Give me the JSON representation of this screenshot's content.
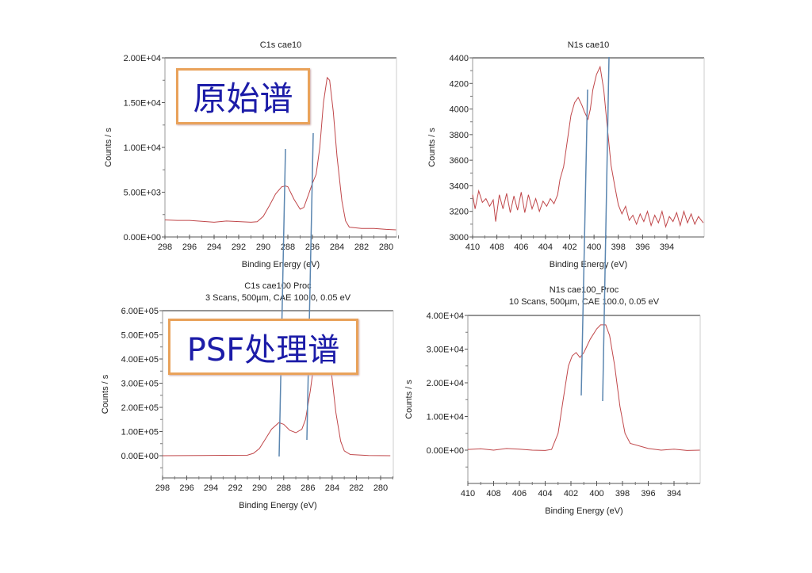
{
  "overlays": {
    "raw_label": "原始谱",
    "psf_label": "PSF处理谱"
  },
  "colors": {
    "curve": "#c0474a",
    "reference_lines": "#5b86b0",
    "overlay_border": "#e9a25a",
    "overlay_text": "#1c1ca8"
  },
  "chart_data": [
    {
      "type": "line",
      "title": "C1s cae10",
      "subtitle": "",
      "xlabel": "Binding Energy (eV)",
      "ylabel": "Counts / s",
      "xlim": [
        298,
        279.2
      ],
      "ylim": [
        0,
        20000
      ],
      "xticks": [
        "298",
        "296",
        "294",
        "292",
        "290",
        "288",
        "286",
        "284",
        "282",
        "280"
      ],
      "yticks": [
        "0.00E+00",
        "5.00E+03",
        "1.00E+04",
        "1.50E+04",
        "2.00E+04"
      ],
      "points": [
        [
          298,
          1900
        ],
        [
          297,
          1850
        ],
        [
          296,
          1850
        ],
        [
          295,
          1750
        ],
        [
          294,
          1650
        ],
        [
          293,
          1780
        ],
        [
          292,
          1720
        ],
        [
          291,
          1650
        ],
        [
          290.5,
          1700
        ],
        [
          290,
          2300
        ],
        [
          289.5,
          3500
        ],
        [
          289,
          4800
        ],
        [
          288.5,
          5600
        ],
        [
          288.2,
          5700
        ],
        [
          288,
          5600
        ],
        [
          287.5,
          4200
        ],
        [
          287,
          3100
        ],
        [
          286.7,
          3300
        ],
        [
          286.3,
          4800
        ],
        [
          286,
          6000
        ],
        [
          285.7,
          7000
        ],
        [
          285.4,
          10000
        ],
        [
          285.1,
          15000
        ],
        [
          284.8,
          17800
        ],
        [
          284.6,
          17500
        ],
        [
          284.3,
          14000
        ],
        [
          284,
          9000
        ],
        [
          283.6,
          4000
        ],
        [
          283.3,
          1800
        ],
        [
          283,
          1100
        ],
        [
          282,
          950
        ],
        [
          281,
          950
        ],
        [
          280,
          850
        ],
        [
          279.2,
          800
        ]
      ]
    },
    {
      "type": "line",
      "title": "N1s cae10",
      "subtitle": "",
      "xlabel": "Binding Energy (eV)",
      "ylabel": "Counts / s",
      "xlim": [
        410,
        391
      ],
      "ylim": [
        3000,
        4400
      ],
      "xticks": [
        "410",
        "408",
        "406",
        "404",
        "402",
        "400",
        "398",
        "396",
        "394"
      ],
      "yticks": [
        "3000",
        "3200",
        "3400",
        "3600",
        "3800",
        "4000",
        "4200",
        "4400"
      ],
      "points": [
        [
          410,
          3330
        ],
        [
          409.8,
          3220
        ],
        [
          409.5,
          3360
        ],
        [
          409.2,
          3270
        ],
        [
          408.9,
          3300
        ],
        [
          408.6,
          3240
        ],
        [
          408.3,
          3290
        ],
        [
          408.1,
          3120
        ],
        [
          407.8,
          3330
        ],
        [
          407.5,
          3220
        ],
        [
          407.2,
          3340
        ],
        [
          406.9,
          3190
        ],
        [
          406.6,
          3320
        ],
        [
          406.3,
          3210
        ],
        [
          406,
          3350
        ],
        [
          405.7,
          3190
        ],
        [
          405.4,
          3330
        ],
        [
          405.1,
          3220
        ],
        [
          404.8,
          3300
        ],
        [
          404.5,
          3200
        ],
        [
          404.2,
          3280
        ],
        [
          403.9,
          3240
        ],
        [
          403.6,
          3300
        ],
        [
          403.3,
          3260
        ],
        [
          403,
          3330
        ],
        [
          402.8,
          3450
        ],
        [
          402.5,
          3550
        ],
        [
          402.2,
          3750
        ],
        [
          401.9,
          3950
        ],
        [
          401.6,
          4050
        ],
        [
          401.3,
          4090
        ],
        [
          401,
          4030
        ],
        [
          400.8,
          3980
        ],
        [
          400.5,
          3920
        ],
        [
          400.3,
          4000
        ],
        [
          400.1,
          4150
        ],
        [
          399.8,
          4270
        ],
        [
          399.5,
          4330
        ],
        [
          399.2,
          4150
        ],
        [
          398.9,
          3850
        ],
        [
          398.6,
          3560
        ],
        [
          398.3,
          3400
        ],
        [
          398,
          3250
        ],
        [
          397.7,
          3180
        ],
        [
          397.4,
          3240
        ],
        [
          397.1,
          3130
        ],
        [
          396.8,
          3170
        ],
        [
          396.5,
          3100
        ],
        [
          396.2,
          3180
        ],
        [
          395.9,
          3120
        ],
        [
          395.6,
          3200
        ],
        [
          395.3,
          3090
        ],
        [
          395,
          3170
        ],
        [
          394.7,
          3110
        ],
        [
          394.4,
          3200
        ],
        [
          394.1,
          3080
        ],
        [
          393.8,
          3160
        ],
        [
          393.5,
          3120
        ],
        [
          393.2,
          3190
        ],
        [
          392.9,
          3090
        ],
        [
          392.6,
          3200
        ],
        [
          392.3,
          3110
        ],
        [
          392,
          3180
        ],
        [
          391.7,
          3100
        ],
        [
          391.4,
          3160
        ],
        [
          391,
          3110
        ]
      ]
    },
    {
      "type": "line",
      "title": "C1s cae100 Proc",
      "subtitle": "3 Scans,  500µm,  CAE 100.0,  0.05 eV",
      "xlabel": "Binding Energy (eV)",
      "ylabel": "Counts / s",
      "xlim": [
        298,
        279.2
      ],
      "ylim": [
        -100000,
        600000
      ],
      "xticks": [
        "298",
        "296",
        "294",
        "292",
        "290",
        "288",
        "286",
        "284",
        "282",
        "280"
      ],
      "yticks": [
        "0.00E+00",
        "1.00E+05",
        "2.00E+05",
        "3.00E+05",
        "4.00E+05",
        "5.00E+05",
        "6.00E+05"
      ],
      "points": [
        [
          298,
          0
        ],
        [
          295,
          500
        ],
        [
          293,
          1500
        ],
        [
          291,
          2000
        ],
        [
          290.5,
          10000
        ],
        [
          290,
          30000
        ],
        [
          289.5,
          70000
        ],
        [
          289,
          110000
        ],
        [
          288.4,
          137000
        ],
        [
          288,
          130000
        ],
        [
          287.5,
          105000
        ],
        [
          287,
          95000
        ],
        [
          286.5,
          110000
        ],
        [
          286.2,
          150000
        ],
        [
          285.8,
          270000
        ],
        [
          285.4,
          420000
        ],
        [
          285,
          540000
        ],
        [
          284.8,
          555000
        ],
        [
          284.5,
          520000
        ],
        [
          284.1,
          360000
        ],
        [
          283.7,
          180000
        ],
        [
          283.3,
          60000
        ],
        [
          283,
          20000
        ],
        [
          282.5,
          5000
        ],
        [
          281,
          1000
        ],
        [
          279.2,
          0
        ]
      ]
    },
    {
      "type": "line",
      "title": "N1s cae100_Proc",
      "subtitle": "10 Scans,  500µm,  CAE 100.0,  0.05 eV",
      "xlabel": "Binding Energy (eV)",
      "ylabel": "Counts / s",
      "xlim": [
        410,
        392
      ],
      "ylim": [
        -10000,
        40000
      ],
      "xticks": [
        "410",
        "408",
        "406",
        "404",
        "402",
        "400",
        "398",
        "396",
        "394"
      ],
      "yticks": [
        "0.00E+00",
        "1.00E+04",
        "2.00E+04",
        "3.00E+04",
        "4.00E+04"
      ],
      "points": [
        [
          410,
          200
        ],
        [
          409,
          400
        ],
        [
          408,
          0
        ],
        [
          407,
          500
        ],
        [
          406,
          300
        ],
        [
          405,
          0
        ],
        [
          404,
          -100
        ],
        [
          403.5,
          200
        ],
        [
          403,
          5000
        ],
        [
          402.6,
          15000
        ],
        [
          402.2,
          25000
        ],
        [
          401.9,
          28000
        ],
        [
          401.6,
          29000
        ],
        [
          401.3,
          27500
        ],
        [
          401,
          29000
        ],
        [
          400.5,
          33000
        ],
        [
          400,
          36000
        ],
        [
          399.7,
          37200
        ],
        [
          399.3,
          37200
        ],
        [
          399,
          34000
        ],
        [
          398.6,
          25000
        ],
        [
          398.2,
          13000
        ],
        [
          397.8,
          5000
        ],
        [
          397.4,
          2000
        ],
        [
          396,
          500
        ],
        [
          395,
          0
        ],
        [
          394,
          300
        ],
        [
          393,
          -100
        ],
        [
          392,
          0
        ]
      ]
    }
  ]
}
